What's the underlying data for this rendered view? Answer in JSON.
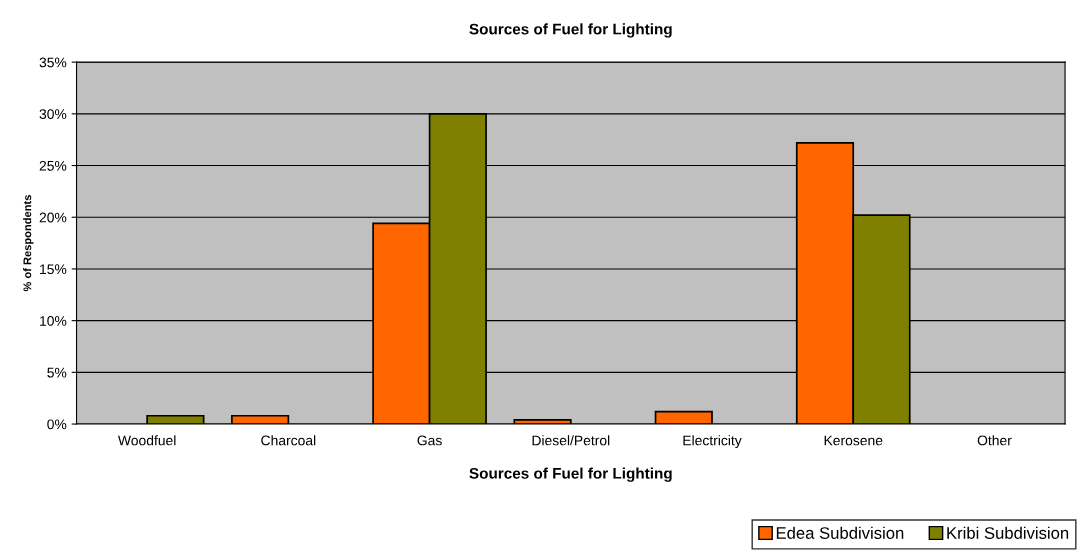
{
  "chart_data": {
    "type": "bar",
    "title": "Sources of Fuel for Lighting",
    "xlabel": "Sources of Fuel for Lighting",
    "ylabel": "% of Respondents",
    "categories": [
      "Woodfuel",
      "Charcoal",
      "Gas",
      "Diesel/Petrol",
      "Electricity",
      "Kerosene",
      "Other"
    ],
    "series": [
      {
        "name": "Edea Subdivision",
        "color": "#ff6600",
        "values": [
          0,
          0.8,
          19.4,
          0.4,
          1.2,
          27.2,
          0
        ]
      },
      {
        "name": "Kribi Subdivision",
        "color": "#808000",
        "values": [
          0.8,
          0,
          30,
          0,
          0,
          20.2,
          0
        ]
      }
    ],
    "ylim": [
      0,
      35
    ],
    "yticks": [
      {
        "value": 0,
        "label": "0%"
      },
      {
        "value": 5,
        "label": "5%"
      },
      {
        "value": 10,
        "label": "10%"
      },
      {
        "value": 15,
        "label": "15%"
      },
      {
        "value": 20,
        "label": "20%"
      },
      {
        "value": 25,
        "label": "25%"
      },
      {
        "value": 30,
        "label": "30%"
      },
      {
        "value": 35,
        "label": "35%"
      }
    ],
    "grid": "y",
    "legend": "bottom right"
  }
}
